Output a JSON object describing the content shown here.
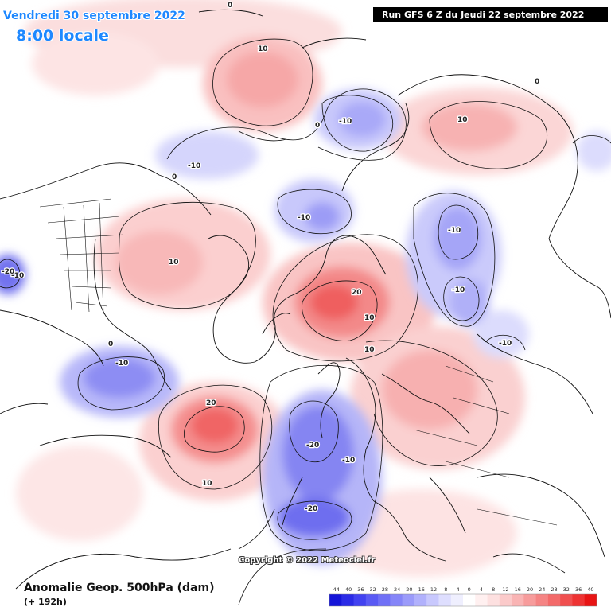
{
  "header": {
    "date": "Vendredi 30 septembre 2022",
    "time": "8:00 locale",
    "run": "Run GFS 6 Z du Jeudi 22 septembre 2022"
  },
  "copyright": "Copyright © 2022 Meteociel.fr",
  "footer": {
    "title": "Anomalie Geop. 500hPa (dam)",
    "subtitle": "(+ 192h)"
  },
  "legend": {
    "ticks": [
      "-44",
      "-40",
      "-36",
      "-32",
      "-28",
      "-24",
      "-20",
      "-16",
      "-12",
      "-8",
      "-4",
      "0",
      "4",
      "8",
      "12",
      "16",
      "20",
      "24",
      "28",
      "32",
      "36",
      "40"
    ],
    "colors": [
      "#1515d8",
      "#2b2be6",
      "#4242f0",
      "#5a5af4",
      "#7070f6",
      "#8585f8",
      "#9b9bfa",
      "#b1b1fc",
      "#c8c8fd",
      "#dedefe",
      "#efeffe",
      "#ffffff",
      "#fff0f0",
      "#fde0e0",
      "#fbcaca",
      "#f9b4b4",
      "#f79c9c",
      "#f58484",
      "#f36a6a",
      "#f04f4f",
      "#ee3333",
      "#e81414"
    ]
  },
  "contour_labels": [
    {
      "text": "0",
      "name": "label-0-top"
    },
    {
      "text": "10",
      "name": "label-10-greenland-sea"
    },
    {
      "text": "-10",
      "name": "label-minus10-barents"
    },
    {
      "text": "0",
      "name": "label-0-barents"
    },
    {
      "text": "10",
      "name": "label-10-eastsiberia"
    },
    {
      "text": "0",
      "name": "label-0-east"
    },
    {
      "text": "-10",
      "name": "label-minus10-canada-north"
    },
    {
      "text": "0",
      "name": "label-0-canada-north"
    },
    {
      "text": "-10",
      "name": "label-minus10-arctic"
    },
    {
      "text": "-10",
      "name": "label-minus10-siberia"
    },
    {
      "text": "-10",
      "name": "label-minus10-siberia-south"
    },
    {
      "text": "10",
      "name": "label-10-canada"
    },
    {
      "text": "-20",
      "name": "label-minus20-west"
    },
    {
      "text": "-10",
      "name": "label-minus10-west"
    },
    {
      "text": "20",
      "name": "label-20-alaska"
    },
    {
      "text": "10",
      "name": "label-10-alaska"
    },
    {
      "text": "10",
      "name": "label-10-bering"
    },
    {
      "text": "-10",
      "name": "label-minus10-pacific"
    },
    {
      "text": "0",
      "name": "label-0-pacific"
    },
    {
      "text": "-10",
      "name": "label-minus10-china"
    },
    {
      "text": "20",
      "name": "label-20-pacific"
    },
    {
      "text": "10",
      "name": "label-10-pacific"
    },
    {
      "text": "-20",
      "name": "label-minus20-europe-north"
    },
    {
      "text": "-10",
      "name": "label-minus10-europe"
    },
    {
      "text": "-20",
      "name": "label-minus20-europe-south"
    }
  ]
}
